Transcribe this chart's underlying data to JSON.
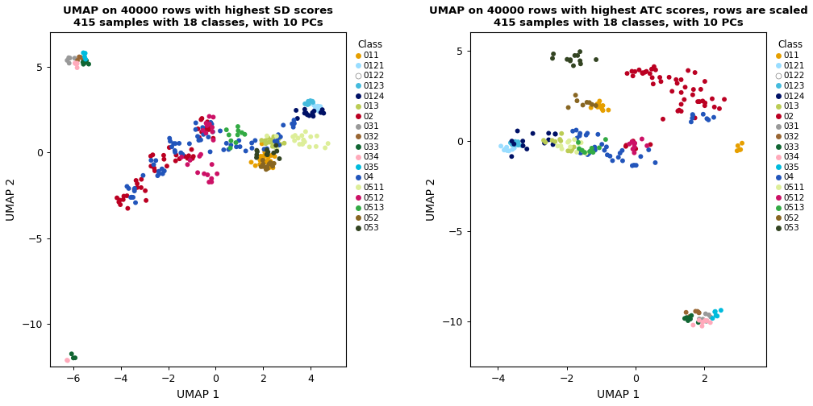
{
  "title1": "UMAP on 40000 rows with highest SD scores\n415 samples with 18 classes, with 10 PCs",
  "title2": "UMAP on 40000 rows with highest ATC scores, rows are scaled\n415 samples with 18 classes, with 10 PCs",
  "xlabel": "UMAP 1",
  "ylabel": "UMAP 2",
  "classes": [
    "011",
    "0121",
    "0122",
    "0123",
    "0124",
    "013",
    "02",
    "031",
    "032",
    "033",
    "034",
    "035",
    "04",
    "0511",
    "0512",
    "0513",
    "052",
    "053"
  ],
  "colors": {
    "011": "#E69F00",
    "0121": "#99DDFF",
    "0122": "#FFFFFF",
    "0123": "#44BBDD",
    "0124": "#001166",
    "013": "#BBCC55",
    "02": "#BB0022",
    "031": "#999999",
    "032": "#996633",
    "033": "#116633",
    "034": "#FFAABB",
    "035": "#00BBDD",
    "04": "#2255BB",
    "0511": "#DDEE99",
    "0512": "#CC1166",
    "0513": "#33AA44",
    "052": "#886622",
    "053": "#334422"
  },
  "plot1": {
    "xlim": [
      -7.0,
      5.5
    ],
    "ylim": [
      -12.5,
      7.0
    ],
    "xticks": [
      -6,
      -4,
      -2,
      0,
      2,
      4
    ],
    "yticks": [
      -10,
      -5,
      0,
      5
    ]
  },
  "plot2": {
    "xlim": [
      -4.8,
      3.8
    ],
    "ylim": [
      -12.5,
      6.0
    ],
    "xticks": [
      -4,
      -2,
      0,
      2
    ],
    "yticks": [
      -10,
      -5,
      0,
      5
    ]
  },
  "background_color": "#FFFFFF",
  "point_size": 18,
  "title_fontsize": 9.5,
  "axis_fontsize": 10
}
